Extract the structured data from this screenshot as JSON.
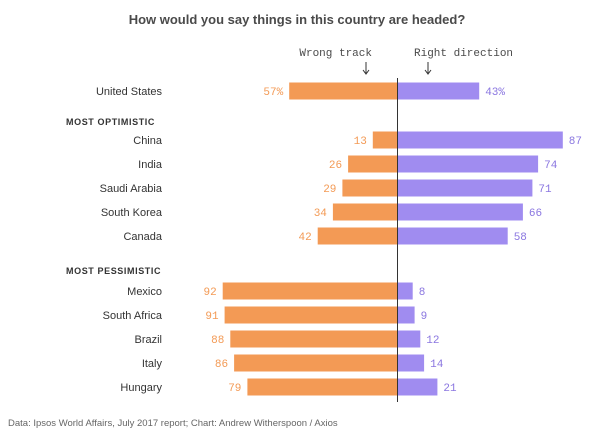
{
  "title": "How would you say things in this country are headed?",
  "source": "Data: Ipsos World Affairs, July 2017 report; Chart: Andrew Witherspoon / Axios",
  "colors": {
    "wrong_track": "#f39a55",
    "right_direction": "#a08cf0",
    "wrong_text": "#f39a55",
    "right_text": "#8a76e0",
    "divider": "#333333"
  },
  "chart_data": {
    "type": "bar",
    "orientation": "horizontal-diverging",
    "title": "How would you say things in this country are headed?",
    "unit": "%",
    "xlim": [
      0,
      100
    ],
    "series": [
      {
        "name": "Wrong track",
        "side": "left"
      },
      {
        "name": "Right direction",
        "side": "right"
      }
    ],
    "groups": [
      {
        "label": "",
        "rows": [
          {
            "category": "United States",
            "wrong": 57,
            "right": 43,
            "wrong_label": "57%",
            "right_label": "43%"
          }
        ]
      },
      {
        "label": "MOST OPTIMISTIC",
        "rows": [
          {
            "category": "China",
            "wrong": 13,
            "right": 87,
            "wrong_label": "13",
            "right_label": "87"
          },
          {
            "category": "India",
            "wrong": 26,
            "right": 74,
            "wrong_label": "26",
            "right_label": "74"
          },
          {
            "category": "Saudi Arabia",
            "wrong": 29,
            "right": 71,
            "wrong_label": "29",
            "right_label": "71"
          },
          {
            "category": "South Korea",
            "wrong": 34,
            "right": 66,
            "wrong_label": "34",
            "right_label": "66"
          },
          {
            "category": "Canada",
            "wrong": 42,
            "right": 58,
            "wrong_label": "42",
            "right_label": "58"
          }
        ]
      },
      {
        "label": "MOST PESSIMISTIC",
        "rows": [
          {
            "category": "Mexico",
            "wrong": 92,
            "right": 8,
            "wrong_label": "92",
            "right_label": "8"
          },
          {
            "category": "South Africa",
            "wrong": 91,
            "right": 9,
            "wrong_label": "91",
            "right_label": "9"
          },
          {
            "category": "Brazil",
            "wrong": 88,
            "right": 12,
            "wrong_label": "88",
            "right_label": "12"
          },
          {
            "category": "Italy",
            "wrong": 86,
            "right": 14,
            "wrong_label": "86",
            "right_label": "14"
          },
          {
            "category": "Hungary",
            "wrong": 79,
            "right": 21,
            "wrong_label": "79",
            "right_label": "21"
          }
        ]
      }
    ]
  }
}
